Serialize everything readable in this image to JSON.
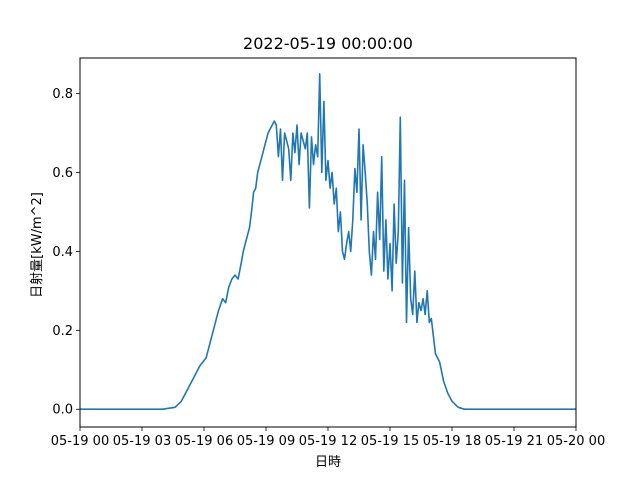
{
  "chart_data": {
    "type": "line",
    "title": "2022-05-19 00:00:00",
    "xlabel": "日時",
    "ylabel": "日射量[kW/m^2]",
    "xlim": [
      0,
      24
    ],
    "ylim": [
      -0.045,
      0.89
    ],
    "x_tick_values": [
      0,
      3,
      6,
      9,
      12,
      15,
      18,
      21,
      24
    ],
    "x_tick_labels": [
      "05-19 00",
      "05-19 03",
      "05-19 06",
      "05-19 09",
      "05-19 12",
      "05-19 15",
      "05-19 18",
      "05-19 21",
      "05-20 00"
    ],
    "y_tick_values": [
      0.0,
      0.2,
      0.4,
      0.6,
      0.8
    ],
    "y_tick_labels": [
      "0.0",
      "0.2",
      "0.4",
      "0.6",
      "0.8"
    ],
    "grid": false,
    "line_color": "#1f77b4",
    "series": [
      {
        "x": [
          0,
          1,
          2,
          3,
          4,
          4.6,
          4.9,
          5.2,
          5.5,
          5.8,
          6.1,
          6.4,
          6.7,
          6.9,
          7.05,
          7.2,
          7.35,
          7.5,
          7.65,
          7.8,
          7.9,
          8.0,
          8.1,
          8.2,
          8.3,
          8.4,
          8.5,
          8.6,
          8.7,
          8.8,
          8.9,
          9.0,
          9.1,
          9.2,
          9.3,
          9.4,
          9.5,
          9.6,
          9.7,
          9.8,
          9.9,
          10.0,
          10.1,
          10.2,
          10.3,
          10.4,
          10.5,
          10.6,
          10.7,
          10.8,
          10.9,
          11.0,
          11.1,
          11.2,
          11.3,
          11.4,
          11.5,
          11.6,
          11.7,
          11.8,
          11.9,
          12.0,
          12.1,
          12.2,
          12.3,
          12.4,
          12.5,
          12.6,
          12.7,
          12.8,
          12.9,
          13.0,
          13.1,
          13.2,
          13.3,
          13.4,
          13.5,
          13.6,
          13.7,
          13.8,
          13.9,
          14.0,
          14.1,
          14.2,
          14.3,
          14.4,
          14.5,
          14.6,
          14.7,
          14.8,
          14.9,
          15.0,
          15.1,
          15.2,
          15.3,
          15.4,
          15.5,
          15.6,
          15.7,
          15.8,
          15.9,
          16.0,
          16.1,
          16.2,
          16.3,
          16.4,
          16.5,
          16.6,
          16.7,
          16.8,
          16.9,
          17.0,
          17.2,
          17.4,
          17.6,
          17.8,
          18.0,
          18.3,
          18.6,
          19,
          20,
          21,
          22,
          23,
          24
        ],
        "y": [
          0.0,
          0.0,
          0.0,
          0.0,
          0.0,
          0.005,
          0.02,
          0.05,
          0.08,
          0.11,
          0.13,
          0.19,
          0.25,
          0.28,
          0.27,
          0.31,
          0.33,
          0.34,
          0.33,
          0.37,
          0.4,
          0.42,
          0.44,
          0.46,
          0.5,
          0.55,
          0.56,
          0.6,
          0.62,
          0.64,
          0.66,
          0.68,
          0.7,
          0.71,
          0.72,
          0.73,
          0.72,
          0.64,
          0.71,
          0.58,
          0.7,
          0.68,
          0.66,
          0.58,
          0.7,
          0.65,
          0.72,
          0.62,
          0.7,
          0.68,
          0.66,
          0.7,
          0.51,
          0.69,
          0.62,
          0.67,
          0.64,
          0.85,
          0.6,
          0.78,
          0.58,
          0.63,
          0.56,
          0.6,
          0.52,
          0.56,
          0.45,
          0.5,
          0.4,
          0.38,
          0.42,
          0.45,
          0.4,
          0.48,
          0.61,
          0.55,
          0.71,
          0.48,
          0.67,
          0.6,
          0.52,
          0.4,
          0.34,
          0.45,
          0.38,
          0.55,
          0.43,
          0.64,
          0.35,
          0.48,
          0.33,
          0.42,
          0.3,
          0.52,
          0.37,
          0.45,
          0.74,
          0.32,
          0.58,
          0.22,
          0.46,
          0.28,
          0.24,
          0.35,
          0.22,
          0.27,
          0.25,
          0.28,
          0.24,
          0.3,
          0.22,
          0.23,
          0.14,
          0.12,
          0.07,
          0.04,
          0.02,
          0.005,
          0.0,
          0.0,
          0.0,
          0.0,
          0.0,
          0.0,
          0.0
        ]
      }
    ]
  }
}
